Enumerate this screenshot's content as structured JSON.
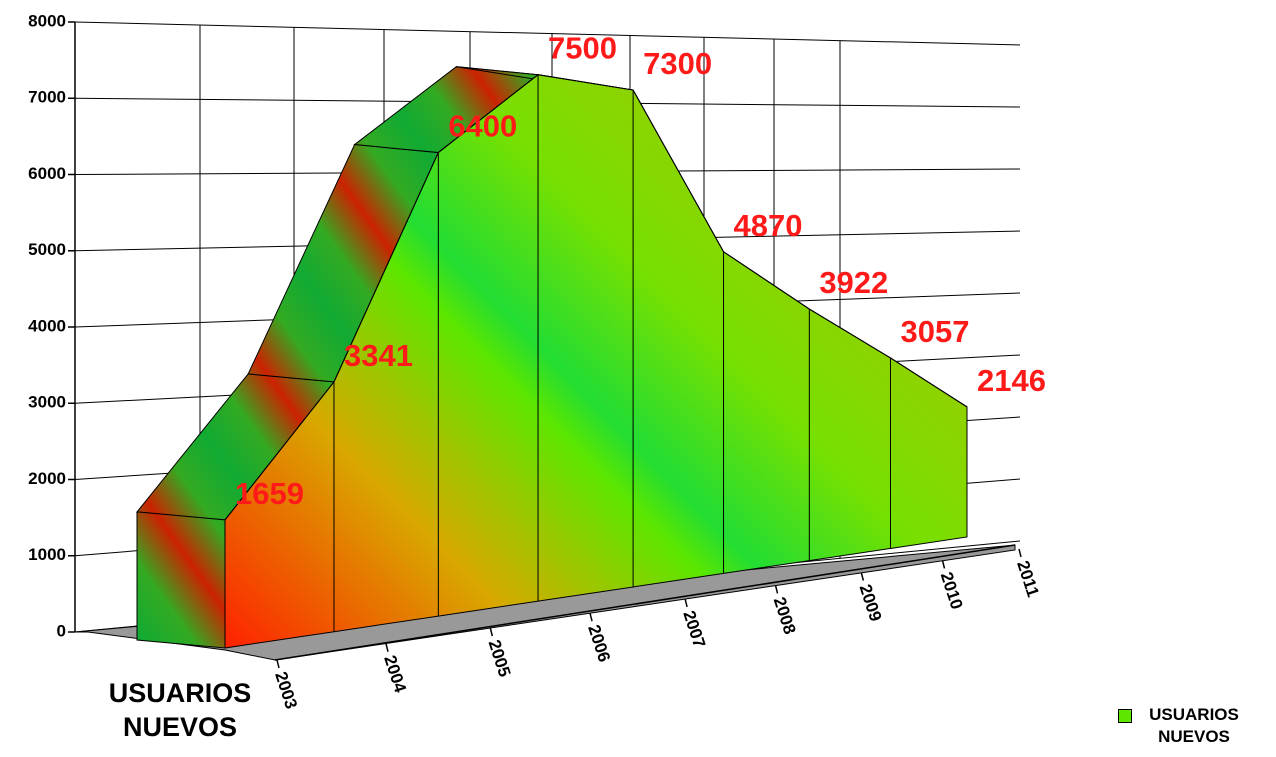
{
  "chart_data": {
    "type": "area3d",
    "categories": [
      "2003",
      "2004",
      "2005",
      "2006",
      "2007",
      "2008",
      "2009",
      "2010",
      "2011"
    ],
    "series": [
      {
        "name": "USUARIOS NUEVOS",
        "color": "#5ce600",
        "values": [
          1659,
          3341,
          6400,
          7500,
          7300,
          4870,
          3922,
          3057,
          2146
        ]
      }
    ],
    "ylim": [
      0,
      8000
    ],
    "yticks": [
      0,
      1000,
      2000,
      3000,
      4000,
      5000,
      6000,
      7000,
      8000
    ],
    "grid": true,
    "legend": "bottom-right"
  }
}
